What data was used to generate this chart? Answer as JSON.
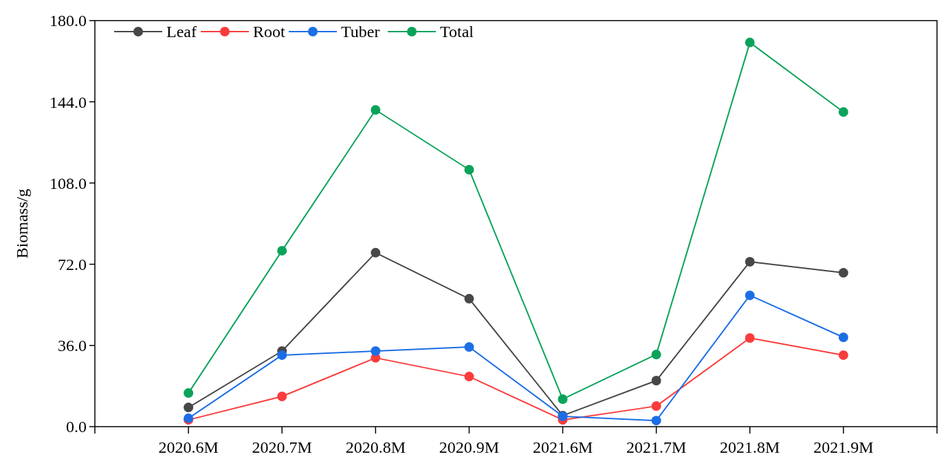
{
  "chart_data": {
    "type": "line",
    "ylabel": "Biomass/g",
    "categories": [
      "2020.6M",
      "2020.7M",
      "2020.8M",
      "2020.9M",
      "2021.6M",
      "2021.7M",
      "2021.8M",
      "2021.9M"
    ],
    "series": [
      {
        "name": "Leaf",
        "color": "#474747",
        "values": [
          8.5,
          33.5,
          77.1,
          56.7,
          4.9,
          20.4,
          73.1,
          68.2
        ]
      },
      {
        "name": "Root",
        "color": "#fa3c3c",
        "values": [
          3.0,
          13.4,
          30.5,
          22.2,
          3.0,
          9.1,
          39.3,
          31.7
        ]
      },
      {
        "name": "Tuber",
        "color": "#1c6ee6",
        "values": [
          3.7,
          31.7,
          33.5,
          35.3,
          4.6,
          2.7,
          58.2,
          39.6
        ]
      },
      {
        "name": "Total",
        "color": "#0aa35a",
        "values": [
          14.9,
          78.0,
          140.4,
          113.9,
          12.2,
          32.0,
          170.3,
          139.5
        ]
      }
    ],
    "ylim": [
      0,
      180
    ],
    "yticks": [
      {
        "value": 0,
        "label": "0.0"
      },
      {
        "value": 36,
        "label": "36.0"
      },
      {
        "value": 72,
        "label": "72.0"
      },
      {
        "value": 108,
        "label": "108.0"
      },
      {
        "value": 144,
        "label": "144.0"
      },
      {
        "value": 180,
        "label": "180.0"
      }
    ],
    "grid": false,
    "legend": "top left",
    "marker": "circle",
    "line_style": "solid"
  }
}
